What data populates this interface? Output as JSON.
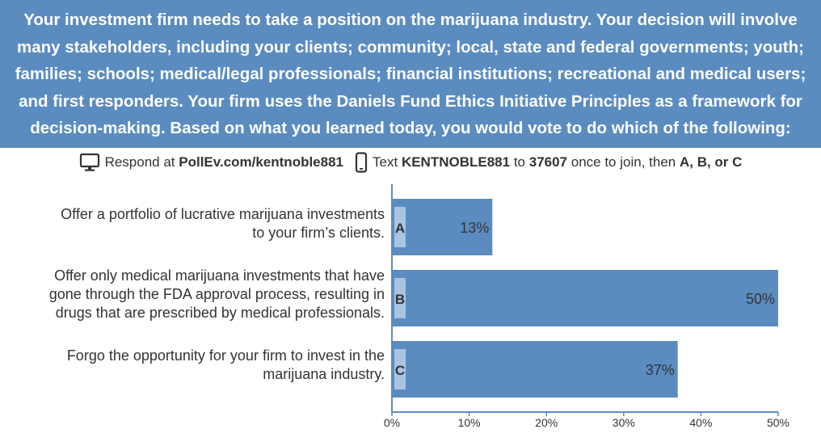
{
  "header": {
    "question": "Your investment firm needs to take a position on the marijuana industry. Your decision will involve many stakeholders, including your clients; community; local, state and federal governments; youth; families; schools; medical/legal professionals; financial institutions; recreational and medical users; and first responders. Your firm uses the Daniels Fund Ethics Initiative Principles as a framework for decision-making. Based on what you learned today, you would vote to do which of the following:"
  },
  "respond": {
    "web_prefix": "Respond at",
    "web_url": "PollEv.com/kentnoble881",
    "text_prefix": "Text",
    "keyword": "KENTNOBLE881",
    "to_word": "to",
    "number": "37607",
    "middle": "once to join, then",
    "choices": "A, B, or C",
    "web_icon": "monitor-icon",
    "text_icon": "phone-icon"
  },
  "options": [
    {
      "label_line1": "Offer a portfolio of lucrative marijuana investments",
      "label_line2": "to your firm’s clients.",
      "label_line3": ""
    },
    {
      "label_line1": "Offer only medical marijuana investments that have",
      "label_line2": "gone through the FDA approval process, resulting in",
      "label_line3": "drugs that are prescribed by medical professionals."
    },
    {
      "label_line1": "Forgo the opportunity for your firm to invest in the",
      "label_line2": "marijuana industry.",
      "label_line3": ""
    }
  ],
  "chart_data": {
    "type": "bar",
    "orientation": "horizontal",
    "categories": [
      "A",
      "B",
      "C"
    ],
    "values": [
      13,
      50,
      37
    ],
    "value_labels": [
      "13%",
      "50%",
      "37%"
    ],
    "xlim": [
      0,
      50
    ],
    "xticks": [
      "0%",
      "10%",
      "20%",
      "30%",
      "40%",
      "50%"
    ],
    "bar_color": "#5b8cc0",
    "letter_badge_color": "#a9c4e2",
    "grid": false
  }
}
